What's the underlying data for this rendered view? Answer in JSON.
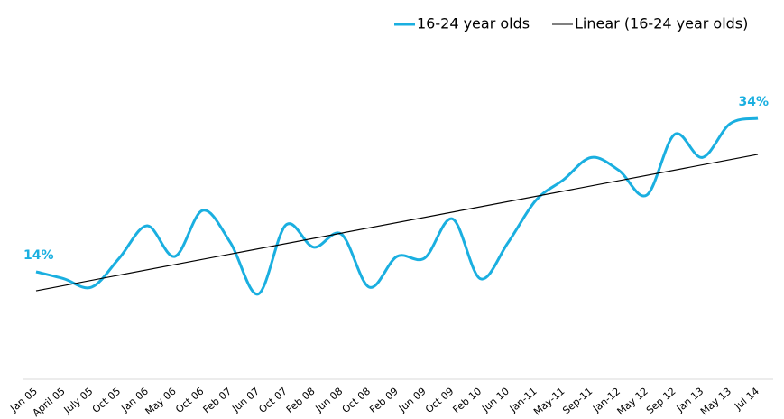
{
  "chart_data": {
    "type": "line",
    "categories": [
      "Jan 05",
      "April 05",
      "July 05",
      "Oct 05",
      "Jan 06",
      "May 06",
      "Oct 06",
      "Feb 07",
      "Jun 07",
      "Oct 07",
      "Feb 08",
      "Jun 08",
      "Oct 08",
      "Feb 09",
      "Jun 09",
      "Oct 09",
      "Feb 10",
      "Jun 10",
      "Jan-11",
      "May-11",
      "Sep-11",
      "Jan-12",
      "May 12",
      "Sep 12",
      "Jan 13",
      "May 13",
      "Jul 14"
    ],
    "series": [
      {
        "name": "16-24 year olds",
        "color": "#1aafe0",
        "values": [
          14,
          13.1,
          12,
          15.8,
          20,
          16,
          22,
          17.8,
          11.1,
          20.1,
          17.2,
          18.9,
          12,
          16,
          15.8,
          20.9,
          13.1,
          17.8,
          23.3,
          26,
          28.9,
          27.2,
          24,
          31.9,
          28.9,
          33.3,
          34
        ],
        "value_labels": [
          "14%",
          null,
          null,
          null,
          null,
          null,
          null,
          null,
          null,
          null,
          null,
          null,
          null,
          null,
          null,
          null,
          null,
          null,
          null,
          null,
          null,
          null,
          null,
          null,
          null,
          null,
          "34%"
        ]
      }
    ],
    "trendline": {
      "name": "Linear (16-24 year olds)",
      "color": "#000000"
    },
    "ylim": [
      0,
      40
    ],
    "legend": "top-right"
  }
}
